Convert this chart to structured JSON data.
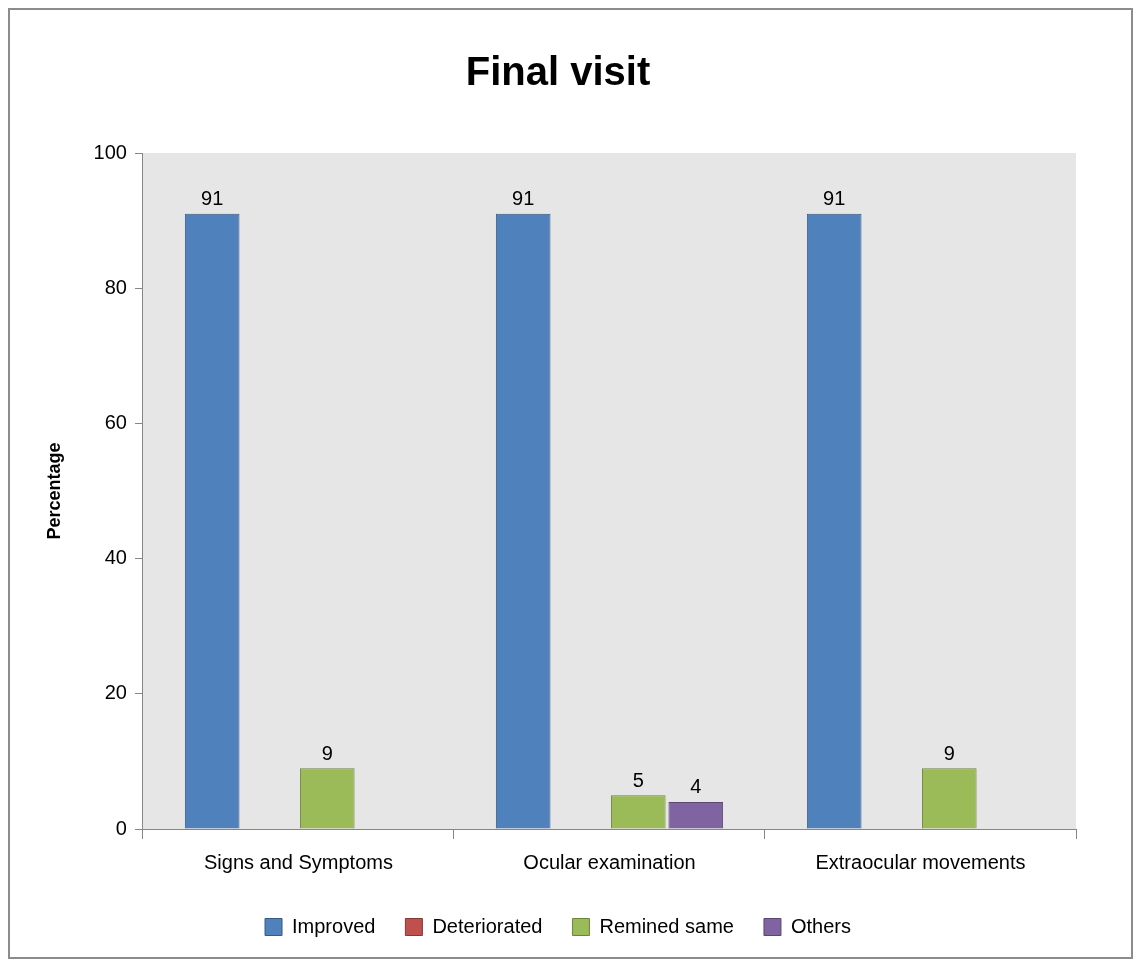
{
  "chart_data": {
    "type": "bar",
    "title": "Final visit",
    "ylabel": "Percentage",
    "categories": [
      "Signs and Symptoms",
      "Ocular examination",
      "Extraocular movements"
    ],
    "series": [
      {
        "name": "Improved",
        "color": "#4f81bd",
        "values": [
          91,
          91,
          91
        ]
      },
      {
        "name": "Deteriorated",
        "color": "#c0504d",
        "values": [
          null,
          null,
          null
        ]
      },
      {
        "name": "Remined same",
        "color": "#9bbb59",
        "values": [
          9,
          5,
          9
        ]
      },
      {
        "name": "Others",
        "color": "#8064a2",
        "values": [
          null,
          4,
          null
        ]
      }
    ],
    "ylim": [
      0,
      100
    ],
    "yticks": [
      0,
      20,
      40,
      60,
      80,
      100
    ],
    "data_labels": true,
    "legend": "bottom"
  }
}
